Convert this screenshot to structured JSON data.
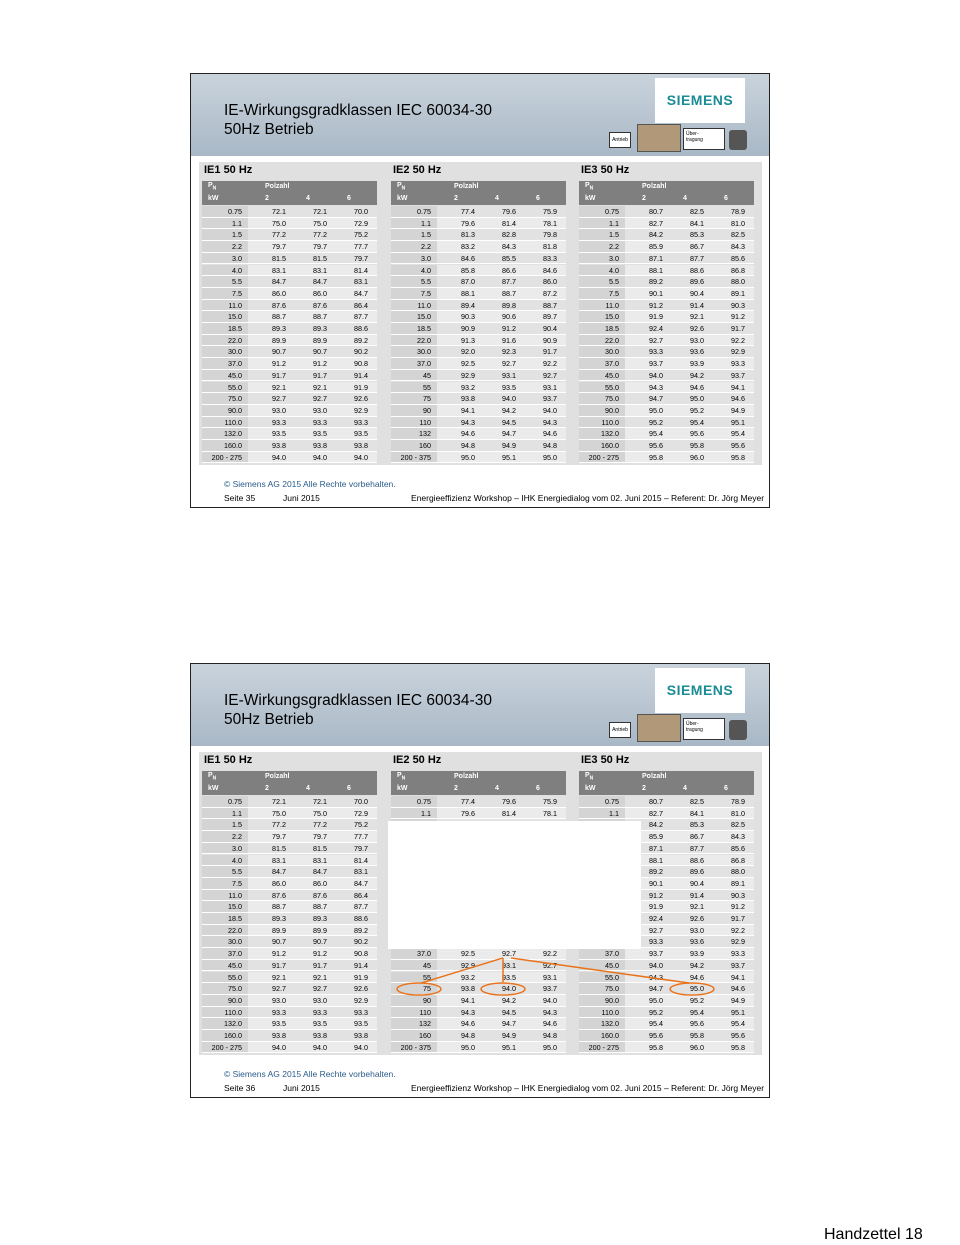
{
  "header": {
    "title_lines": [
      "IE-Wirkungsgradklassen IEC 60034-30",
      "50Hz Betrieb"
    ],
    "logo": "SIEMENS",
    "icon_left": "Antrieb",
    "icon_right_lines": [
      "Über-",
      "tragung"
    ]
  },
  "column_headers": {
    "power_symbol": "P",
    "power_subscript": "N",
    "power_unit": "kW",
    "poles_label": "Polzahl",
    "poles": [
      "2",
      "4",
      "6"
    ]
  },
  "tables": [
    {
      "title": "IE1 50 Hz",
      "rows": [
        [
          "0.75",
          "72.1",
          "72.1",
          "70.0"
        ],
        [
          "1.1",
          "75.0",
          "75.0",
          "72.9"
        ],
        [
          "1.5",
          "77.2",
          "77.2",
          "75.2"
        ],
        [
          "2.2",
          "79.7",
          "79.7",
          "77.7"
        ],
        [
          "3.0",
          "81.5",
          "81.5",
          "79.7"
        ],
        [
          "4.0",
          "83.1",
          "83.1",
          "81.4"
        ],
        [
          "5.5",
          "84.7",
          "84.7",
          "83.1"
        ],
        [
          "7.5",
          "86.0",
          "86.0",
          "84.7"
        ],
        [
          "11.0",
          "87.6",
          "87.6",
          "86.4"
        ],
        [
          "15.0",
          "88.7",
          "88.7",
          "87.7"
        ],
        [
          "18.5",
          "89.3",
          "89.3",
          "88.6"
        ],
        [
          "22.0",
          "89.9",
          "89.9",
          "89.2"
        ],
        [
          "30.0",
          "90.7",
          "90.7",
          "90.2"
        ],
        [
          "37.0",
          "91.2",
          "91.2",
          "90.8"
        ],
        [
          "45.0",
          "91.7",
          "91.7",
          "91.4"
        ],
        [
          "55.0",
          "92.1",
          "92.1",
          "91.9"
        ],
        [
          "75.0",
          "92.7",
          "92.7",
          "92.6"
        ],
        [
          "90.0",
          "93.0",
          "93.0",
          "92.9"
        ],
        [
          "110.0",
          "93.3",
          "93.3",
          "93.3"
        ],
        [
          "132.0",
          "93.5",
          "93.5",
          "93.5"
        ],
        [
          "160.0",
          "93.8",
          "93.8",
          "93.8"
        ],
        [
          "200 - 275",
          "94.0",
          "94.0",
          "94.0"
        ]
      ]
    },
    {
      "title": "IE2 50 Hz",
      "rows": [
        [
          "0.75",
          "77.4",
          "79.6",
          "75.9"
        ],
        [
          "1.1",
          "79.6",
          "81.4",
          "78.1"
        ],
        [
          "1.5",
          "81.3",
          "82.8",
          "79.8"
        ],
        [
          "2.2",
          "83.2",
          "84.3",
          "81.8"
        ],
        [
          "3.0",
          "84.6",
          "85.5",
          "83.3"
        ],
        [
          "4.0",
          "85.8",
          "86.6",
          "84.6"
        ],
        [
          "5.5",
          "87.0",
          "87.7",
          "86.0"
        ],
        [
          "7.5",
          "88.1",
          "88.7",
          "87.2"
        ],
        [
          "11.0",
          "89.4",
          "89.8",
          "88.7"
        ],
        [
          "15.0",
          "90.3",
          "90.6",
          "89.7"
        ],
        [
          "18.5",
          "90.9",
          "91.2",
          "90.4"
        ],
        [
          "22.0",
          "91.3",
          "91.6",
          "90.9"
        ],
        [
          "30.0",
          "92.0",
          "92.3",
          "91.7"
        ],
        [
          "37.0",
          "92.5",
          "92.7",
          "92.2"
        ],
        [
          "45",
          "92.9",
          "93.1",
          "92.7"
        ],
        [
          "55",
          "93.2",
          "93.5",
          "93.1"
        ],
        [
          "75",
          "93.8",
          "94.0",
          "93.7"
        ],
        [
          "90",
          "94.1",
          "94.2",
          "94.0"
        ],
        [
          "110",
          "94.3",
          "94.5",
          "94.3"
        ],
        [
          "132",
          "94.6",
          "94.7",
          "94.6"
        ],
        [
          "160",
          "94.8",
          "94.9",
          "94.8"
        ],
        [
          "200 - 375",
          "95.0",
          "95.1",
          "95.0"
        ]
      ]
    },
    {
      "title": "IE3 50 Hz",
      "rows": [
        [
          "0.75",
          "80.7",
          "82.5",
          "78.9"
        ],
        [
          "1.1",
          "82.7",
          "84.1",
          "81.0"
        ],
        [
          "1.5",
          "84.2",
          "85.3",
          "82.5"
        ],
        [
          "2.2",
          "85.9",
          "86.7",
          "84.3"
        ],
        [
          "3.0",
          "87.1",
          "87.7",
          "85.6"
        ],
        [
          "4.0",
          "88.1",
          "88.6",
          "86.8"
        ],
        [
          "5.5",
          "89.2",
          "89.6",
          "88.0"
        ],
        [
          "7.5",
          "90.1",
          "90.4",
          "89.1"
        ],
        [
          "11.0",
          "91.2",
          "91.4",
          "90.3"
        ],
        [
          "15.0",
          "91.9",
          "92.1",
          "91.2"
        ],
        [
          "18.5",
          "92.4",
          "92.6",
          "91.7"
        ],
        [
          "22.0",
          "92.7",
          "93.0",
          "92.2"
        ],
        [
          "30.0",
          "93.3",
          "93.6",
          "92.9"
        ],
        [
          "37.0",
          "93.7",
          "93.9",
          "93.3"
        ],
        [
          "45.0",
          "94.0",
          "94.2",
          "93.7"
        ],
        [
          "55.0",
          "94.3",
          "94.6",
          "94.1"
        ],
        [
          "75.0",
          "94.7",
          "95.0",
          "94.6"
        ],
        [
          "90.0",
          "95.0",
          "95.2",
          "94.9"
        ],
        [
          "110.0",
          "95.2",
          "95.4",
          "95.1"
        ],
        [
          "132.0",
          "95.4",
          "95.6",
          "95.4"
        ],
        [
          "160.0",
          "95.6",
          "95.8",
          "95.6"
        ],
        [
          "200 - 275",
          "95.8",
          "96.0",
          "95.8"
        ]
      ]
    }
  ],
  "footer": {
    "copyright": "© Siemens AG 2015 Alle Rechte vorbehalten.",
    "date": "Juni 2015",
    "event": "Energieeffizienz Workshop – IHK Energiedialog vom 02. Juni 2015 – Referent: Dr. Jörg Meyer"
  },
  "slides": [
    {
      "page": "Seite 35"
    },
    {
      "page": "Seite 36"
    }
  ],
  "handout_label": "Handzettel 18"
}
